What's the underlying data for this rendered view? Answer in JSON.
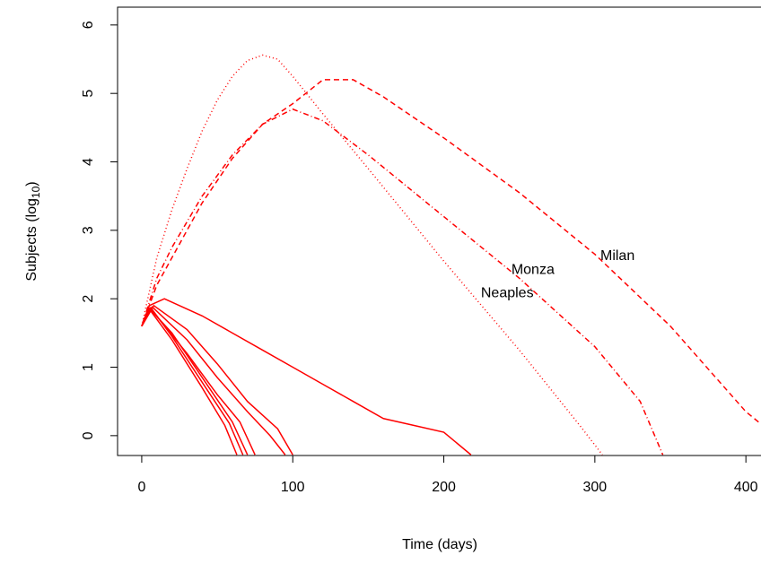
{
  "chart_data": {
    "type": "line",
    "xlabel": "Time (days)",
    "ylabel": "Subjects  (log",
    "ylabel_sub": "10",
    "ylabel_end": ")",
    "xlim": [
      -16,
      410
    ],
    "ylim": [
      -0.29,
      6.26
    ],
    "xticks": [
      0,
      100,
      200,
      300,
      400
    ],
    "yticks": [
      0,
      1,
      2,
      3,
      4,
      5,
      6
    ],
    "series": [
      {
        "name": "Milan",
        "color": "#ff0000",
        "linestyle": "dashed",
        "x": [
          0,
          10,
          20,
          40,
          60,
          80,
          100,
          120,
          140,
          160,
          200,
          250,
          300,
          350,
          400,
          410
        ],
        "values": [
          1.6,
          2.2,
          2.6,
          3.4,
          4.05,
          4.55,
          4.85,
          5.2,
          5.2,
          4.95,
          4.35,
          3.55,
          2.65,
          1.6,
          0.35,
          0.17
        ]
      },
      {
        "name": "Monza",
        "color": "#ff0000",
        "linestyle": "dashdot",
        "x": [
          0,
          10,
          20,
          40,
          60,
          80,
          100,
          120,
          150,
          200,
          250,
          300,
          330,
          345
        ],
        "values": [
          1.6,
          2.3,
          2.75,
          3.5,
          4.1,
          4.55,
          4.77,
          4.6,
          4.1,
          3.2,
          2.3,
          1.3,
          0.5,
          -0.28
        ]
      },
      {
        "name": "Neaples",
        "color": "#ff0000",
        "linestyle": "dotted",
        "x": [
          0,
          10,
          20,
          30,
          40,
          50,
          60,
          70,
          80,
          90,
          100,
          120,
          150,
          200,
          250,
          290,
          305
        ],
        "values": [
          1.6,
          2.6,
          3.3,
          3.9,
          4.45,
          4.9,
          5.25,
          5.48,
          5.56,
          5.5,
          5.25,
          4.7,
          3.9,
          2.55,
          1.25,
          0.15,
          -0.28
        ]
      },
      {
        "color": "#ff0000",
        "linestyle": "solid",
        "x": [
          0,
          5,
          15,
          40,
          60,
          80,
          100,
          120,
          140,
          160,
          180,
          200,
          218
        ],
        "values": [
          1.6,
          1.9,
          2.0,
          1.75,
          1.5,
          1.25,
          1.0,
          0.75,
          0.5,
          0.25,
          0.15,
          0.05,
          -0.28
        ]
      },
      {
        "color": "#ff0000",
        "linestyle": "solid",
        "x": [
          0,
          8,
          30,
          50,
          70,
          90,
          100
        ],
        "values": [
          1.6,
          1.9,
          1.55,
          1.05,
          0.5,
          0.1,
          -0.28
        ]
      },
      {
        "color": "#ff0000",
        "linestyle": "solid",
        "x": [
          0,
          7,
          30,
          50,
          70,
          85,
          95
        ],
        "values": [
          1.6,
          1.88,
          1.4,
          0.85,
          0.35,
          0.0,
          -0.28
        ]
      },
      {
        "color": "#ff0000",
        "linestyle": "solid",
        "x": [
          0,
          6,
          30,
          50,
          65,
          75
        ],
        "values": [
          1.6,
          1.85,
          1.2,
          0.6,
          0.2,
          -0.28
        ]
      },
      {
        "color": "#ff0000",
        "linestyle": "solid",
        "x": [
          0,
          5,
          20,
          40,
          55,
          63
        ],
        "values": [
          1.6,
          1.85,
          1.4,
          0.7,
          0.15,
          -0.28
        ]
      },
      {
        "color": "#ff0000",
        "linestyle": "solid",
        "x": [
          0,
          6,
          20,
          40,
          58,
          67
        ],
        "values": [
          1.6,
          1.87,
          1.45,
          0.78,
          0.18,
          -0.28
        ]
      },
      {
        "color": "#ff0000",
        "linestyle": "solid",
        "x": [
          0,
          5,
          20,
          40,
          60,
          70
        ],
        "values": [
          1.6,
          1.86,
          1.5,
          0.85,
          0.2,
          -0.28
        ]
      }
    ],
    "annotations": [
      {
        "text": "Milan",
        "x": 315,
        "y": 2.62
      },
      {
        "text": "Monza",
        "x": 259,
        "y": 2.42
      },
      {
        "text": "Neaples",
        "x": 242,
        "y": 2.08
      }
    ]
  }
}
